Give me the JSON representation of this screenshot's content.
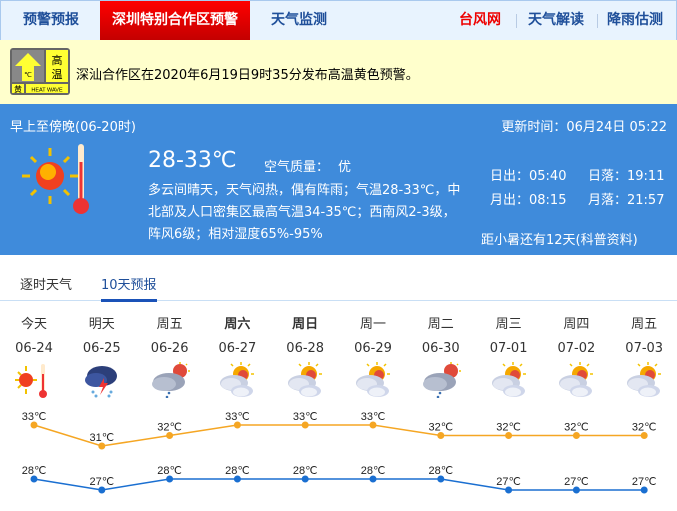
{
  "nav": {
    "items": [
      "预警预报",
      "深圳特别合作区预警",
      "天气监测"
    ],
    "right": [
      "台风网",
      "天气解读",
      "降雨估测"
    ]
  },
  "alert": {
    "badge": {
      "title": "高温",
      "level": "黄",
      "sub": "HEAT WAVE",
      "unit": "℃"
    },
    "text": "深汕合作区在2020年6月19日9时35分发布高温黄色预警。"
  },
  "today": {
    "period": "早上至傍晚(06-20时)",
    "updated": "更新时间：06月24日 05:22",
    "temp": "28-33℃",
    "aqi_label": "空气质量：",
    "aqi": "优",
    "desc": [
      "多云间晴天，天气闷热，偶有阵雨；气温28-33℃，中",
      "北部及人口密集区最高气温34-35℃；西南风2-3级，",
      "阵风6级；相对湿度65%-95%"
    ],
    "sunrise": "日出：05:40",
    "sunset": "日落：19:11",
    "moonrise": "月出：08:15",
    "moonset": "月落：21:57",
    "solar_term": "距小暑还有12天(科普资料)"
  },
  "tabs": [
    "逐时天气",
    "10天预报"
  ],
  "days": [
    {
      "name": "今天",
      "date": "06-24",
      "icon": "hot-sun",
      "high": 33,
      "low": 28,
      "bold": false
    },
    {
      "name": "明天",
      "date": "06-25",
      "icon": "thunderstorm",
      "high": 31,
      "low": 27,
      "bold": false
    },
    {
      "name": "周五",
      "date": "06-26",
      "icon": "shower",
      "high": 32,
      "low": 28,
      "bold": false
    },
    {
      "name": "周六",
      "date": "06-27",
      "icon": "partly-cloudy",
      "high": 33,
      "low": 28,
      "bold": true
    },
    {
      "name": "周日",
      "date": "06-28",
      "icon": "partly-cloudy",
      "high": 33,
      "low": 28,
      "bold": true
    },
    {
      "name": "周一",
      "date": "06-29",
      "icon": "partly-cloudy",
      "high": 33,
      "low": 28,
      "bold": false
    },
    {
      "name": "周二",
      "date": "06-30",
      "icon": "shower",
      "high": 32,
      "low": 28,
      "bold": false
    },
    {
      "name": "周三",
      "date": "07-01",
      "icon": "partly-cloudy",
      "high": 32,
      "low": 27,
      "bold": false
    },
    {
      "name": "周四",
      "date": "07-02",
      "icon": "partly-cloudy",
      "high": 32,
      "low": 27,
      "bold": false
    },
    {
      "name": "周五",
      "date": "07-03",
      "icon": "partly-cloudy",
      "high": 32,
      "low": 27,
      "bold": false
    }
  ],
  "chart_data": {
    "type": "line",
    "categories": [
      "06-24",
      "06-25",
      "06-26",
      "06-27",
      "06-28",
      "06-29",
      "06-30",
      "07-01",
      "07-02",
      "07-03"
    ],
    "unit": "℃",
    "series": [
      {
        "values": [
          33,
          31,
          32,
          33,
          33,
          33,
          32,
          32,
          32,
          32
        ],
        "color": "#f5a623"
      },
      {
        "values": [
          28,
          27,
          28,
          28,
          28,
          28,
          28,
          27,
          27,
          27
        ],
        "color": "#1a6fd1"
      }
    ]
  },
  "colors": {
    "active_tab": "#e00000",
    "panel": "#3f8bdb",
    "alert_bg": "#ffffcc",
    "high_line": "#f5a623",
    "low_line": "#1a6fd1"
  }
}
